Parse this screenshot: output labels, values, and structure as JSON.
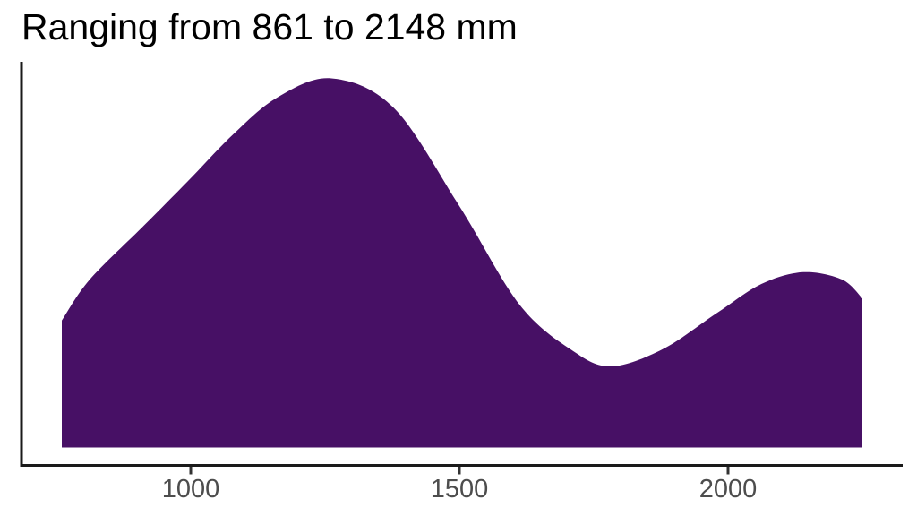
{
  "title": "Ranging from 861 to 2148 mm",
  "chart_data": {
    "type": "area",
    "subtype": "density-curve",
    "title": "Ranging from 861 to 2148 mm",
    "xlabel": "",
    "ylabel": "",
    "x_unit": "mm",
    "xlim": [
      685,
      2325
    ],
    "ylim_relative": [
      0,
      1.04
    ],
    "grid": false,
    "legend": false,
    "fill_color": "#471065",
    "axis_color": "#1a1a1a",
    "tick_color": "#333333",
    "tick_label_color": "#4d4d4d",
    "title_color": "#000000",
    "x_ticks": [
      {
        "value": 1000,
        "label": "1000"
      },
      {
        "value": 1500,
        "label": "1500"
      },
      {
        "value": 2000,
        "label": "2000"
      }
    ],
    "curve": {
      "x_mm": [
        760,
        812,
        912,
        995,
        1078,
        1162,
        1262,
        1378,
        1500,
        1612,
        1712,
        1783,
        1878,
        1978,
        2062,
        2140,
        2212,
        2250
      ],
      "density_rel": [
        0.344,
        0.455,
        0.6,
        0.722,
        0.847,
        0.949,
        1.0,
        0.92,
        0.654,
        0.387,
        0.261,
        0.22,
        0.266,
        0.363,
        0.443,
        0.475,
        0.455,
        0.404
      ]
    },
    "annotations": {
      "data_min_mm": 861,
      "data_max_mm": 2148,
      "main_peak_mm": 1262,
      "secondary_peak_mm": 2140,
      "trough_mm": 1783
    }
  }
}
